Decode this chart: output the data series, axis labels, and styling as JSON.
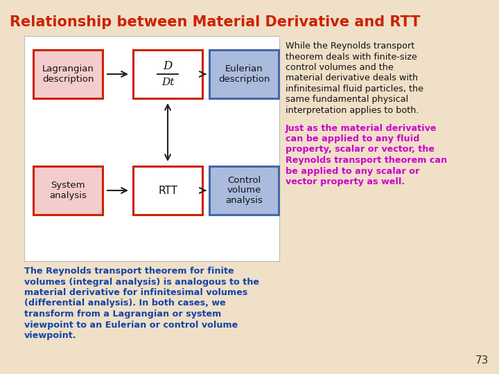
{
  "title": "Relationship between Material Derivative and RTT",
  "title_color": "#CC2200",
  "bg_color": "#F0E0C8",
  "slide_page": "73",
  "diagram": {
    "bg": "#FFFFFF",
    "top_left_box": {
      "label": "Lagrangian\ndescription",
      "border": "#CC2200",
      "fill": "#F5CCCC"
    },
    "top_mid_box": {
      "label": "",
      "border": "#CC2200",
      "fill": "#FFFFFF"
    },
    "top_right_box": {
      "label": "Eulerian\ndescription",
      "border": "#4466AA",
      "fill": "#AABBDD"
    },
    "bot_left_box": {
      "label": "System\nanalysis",
      "border": "#CC2200",
      "fill": "#F5CCCC"
    },
    "bot_mid_box": {
      "label": "RTT",
      "border": "#CC2200",
      "fill": "#FFFFFF"
    },
    "bot_right_box": {
      "label": "Control\nvolume\nanalysis",
      "border": "#4466AA",
      "fill": "#AABBDD"
    }
  },
  "black_text_lines": [
    "While the Reynolds transport",
    "theorem deals with finite-size",
    "control volumes and the",
    "material derivative deals with",
    "infinitesimal fluid particles, the",
    "same fundamental physical",
    "interpretation applies to both."
  ],
  "purple_text_lines": [
    "Just as the material derivative",
    "can be applied to any fluid",
    "property, scalar or vector, the",
    "Reynolds transport theorem can",
    "be applied to any scalar or",
    "vector property as well."
  ],
  "blue_text_lines": [
    "The Reynolds transport theorem for finite",
    "volumes (integral analysis) is analogous to the",
    "material derivative for infinitesimal volumes",
    "(differential analysis). In both cases, we",
    "transform from a Lagrangian or system",
    "viewpoint to an Eulerian or control volume",
    "viewpoint."
  ],
  "black_text_color": "#111111",
  "purple_text_color": "#CC00CC",
  "blue_text_color": "#1144AA"
}
